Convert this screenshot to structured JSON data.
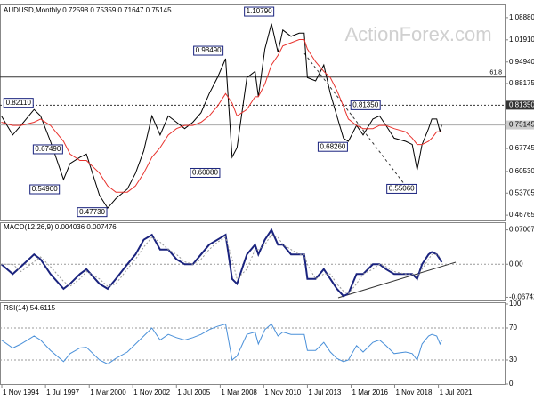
{
  "watermark": "ActionForex.com",
  "chart_data": [
    {
      "type": "line",
      "title": "AUDUSD,Monthly 0.72598 0.75359 0.71647 0.75145",
      "x": [
        1994.8,
        1995.5,
        1996.0,
        1996.8,
        1997.2,
        1997.8,
        1998.6,
        1999.0,
        1999.6,
        2000.0,
        2000.8,
        2001.3,
        2001.8,
        2002.5,
        2003.0,
        2003.5,
        2004.0,
        2004.5,
        2005.0,
        2005.5,
        2006.0,
        2006.5,
        2007.0,
        2007.5,
        2008.0,
        2008.5,
        2008.9,
        2009.2,
        2009.8,
        2010.3,
        2010.5,
        2010.9,
        2011.3,
        2011.7,
        2012.0,
        2012.5,
        2013.0,
        2013.3,
        2013.5,
        2014.0,
        2014.5,
        2014.9,
        2015.3,
        2015.7,
        2016.0,
        2016.5,
        2016.9,
        2017.5,
        2017.9,
        2018.3,
        2018.8,
        2019.5,
        2019.9,
        2020.2,
        2020.5,
        2020.9,
        2021.1,
        2021.4,
        2021.6,
        2021.7
      ],
      "series": [
        {
          "color": "#000000",
          "values": [
            0.78,
            0.72,
            0.75,
            0.8,
            0.78,
            0.7,
            0.58,
            0.63,
            0.65,
            0.66,
            0.53,
            0.49,
            0.52,
            0.55,
            0.6,
            0.67,
            0.78,
            0.72,
            0.78,
            0.76,
            0.74,
            0.76,
            0.79,
            0.85,
            0.9,
            0.96,
            0.65,
            0.68,
            0.9,
            0.92,
            0.84,
            0.99,
            1.07,
            0.98,
            1.05,
            1.03,
            1.04,
            1.04,
            0.9,
            0.89,
            0.94,
            0.85,
            0.78,
            0.71,
            0.7,
            0.75,
            0.72,
            0.77,
            0.78,
            0.75,
            0.71,
            0.7,
            0.69,
            0.61,
            0.69,
            0.74,
            0.77,
            0.77,
            0.73,
            0.7515
          ]
        },
        {
          "color": "#e8322d",
          "values": [
            0.76,
            0.75,
            0.75,
            0.76,
            0.77,
            0.75,
            0.7,
            0.66,
            0.64,
            0.64,
            0.6,
            0.56,
            0.54,
            0.54,
            0.56,
            0.6,
            0.65,
            0.68,
            0.72,
            0.74,
            0.75,
            0.75,
            0.76,
            0.78,
            0.81,
            0.85,
            0.82,
            0.78,
            0.8,
            0.84,
            0.84,
            0.88,
            0.94,
            0.97,
            1.0,
            1.01,
            1.02,
            1.02,
            0.99,
            0.95,
            0.92,
            0.9,
            0.86,
            0.81,
            0.77,
            0.75,
            0.74,
            0.74,
            0.75,
            0.75,
            0.74,
            0.73,
            0.71,
            0.69,
            0.69,
            0.7,
            0.71,
            0.73,
            0.73,
            0.73
          ]
        }
      ],
      "xlim": [
        1994.72,
        2025.6
      ],
      "xticks": [
        {
          "value": 1994.83,
          "label": "1 Nov 1994"
        },
        {
          "value": 1997.5,
          "label": "1 Jul 1997"
        },
        {
          "value": 2000.17,
          "label": "1 Mar 2000"
        },
        {
          "value": 2002.83,
          "label": "1 Nov 2002"
        },
        {
          "value": 2005.5,
          "label": "1 Jul 2005"
        },
        {
          "value": 2008.17,
          "label": "1 Mar 2008"
        },
        {
          "value": 2010.83,
          "label": "1 Nov 2010"
        },
        {
          "value": 2013.5,
          "label": "1 Jul 2013"
        },
        {
          "value": 2016.17,
          "label": "1 Mar 2016"
        },
        {
          "value": 2018.83,
          "label": "1 Nov 2018"
        },
        {
          "value": 2021.5,
          "label": "1 Jul 2021"
        }
      ],
      "ylim": [
        0.454,
        1.122
      ],
      "yticks": [
        {
          "value": 1.0888,
          "label": "1.08880"
        },
        {
          "value": 1.0191,
          "label": "1.01910"
        },
        {
          "value": 0.9494,
          "label": "0.94940"
        },
        {
          "value": 0.88175,
          "label": "0.88175"
        },
        {
          "value": 0.67745,
          "label": "0.67745"
        },
        {
          "value": 0.6053,
          "label": "0.60530"
        },
        {
          "value": 0.53705,
          "label": "0.53705"
        },
        {
          "value": 0.46765,
          "label": "0.46765"
        }
      ],
      "levels": [
        {
          "value": 0.902,
          "label": "61.8",
          "style": "fib"
        },
        {
          "value": 0.8135,
          "label": "0.81350",
          "style": "dashed"
        },
        {
          "value": 0.75145,
          "label": "0.75145",
          "style": "current"
        }
      ],
      "annotations": [
        {
          "label": "1.10790",
          "value": 1.1079,
          "x": 2011.5
        },
        {
          "label": "0.98490",
          "value": 0.9849,
          "x": 2008.4
        },
        {
          "label": "0.82110",
          "value": 0.8211,
          "x": 1996.8
        },
        {
          "label": "0.67490",
          "value": 0.6749,
          "x": 1998.6
        },
        {
          "label": "0.54900",
          "value": 0.549,
          "x": 1998.4
        },
        {
          "label": "0.47730",
          "value": 0.4773,
          "x": 2001.3
        },
        {
          "label": "0.60080",
          "value": 0.6008,
          "x": 2008.2
        },
        {
          "label": "0.68260",
          "value": 0.6826,
          "x": 2016.0
        },
        {
          "label": "0.81350",
          "value": 0.8135,
          "x": 2018.0
        },
        {
          "label": "0.55060",
          "value": 0.5506,
          "x": 2020.2
        }
      ]
    },
    {
      "type": "line",
      "title": "MACD(12,26,9) 0.004036 0.007476",
      "series": [
        {
          "color": "#1a237e",
          "values": [
            0.0,
            -0.02,
            -0.005,
            0.02,
            0.01,
            -0.02,
            -0.05,
            -0.04,
            -0.02,
            -0.01,
            -0.04,
            -0.05,
            -0.03,
            0.0,
            0.02,
            0.05,
            0.06,
            0.03,
            0.03,
            0.01,
            0.0,
            0.0,
            0.02,
            0.04,
            0.05,
            0.06,
            -0.03,
            -0.04,
            0.02,
            0.04,
            0.02,
            0.05,
            0.07,
            0.04,
            0.04,
            0.02,
            0.02,
            0.02,
            -0.03,
            -0.03,
            -0.01,
            -0.03,
            -0.05,
            -0.065,
            -0.06,
            -0.02,
            -0.02,
            0.0,
            0.0,
            -0.01,
            -0.02,
            -0.02,
            -0.02,
            -0.03,
            0.0,
            0.02,
            0.025,
            0.02,
            0.01,
            0.004
          ]
        },
        {
          "color": "#999999",
          "values": [
            0.0,
            0.0,
            -0.015,
            0.005,
            0.015,
            -0.005,
            -0.035,
            -0.045,
            -0.03,
            -0.015,
            -0.03,
            -0.045,
            -0.04,
            -0.01,
            0.01,
            0.035,
            0.055,
            0.045,
            0.03,
            0.02,
            0.005,
            0.0,
            0.01,
            0.03,
            0.045,
            0.055,
            0.01,
            -0.03,
            -0.01,
            0.03,
            0.03,
            0.04,
            0.06,
            0.055,
            0.04,
            0.03,
            0.02,
            0.02,
            0.0,
            -0.03,
            -0.02,
            -0.02,
            -0.04,
            -0.055,
            -0.06,
            -0.04,
            -0.02,
            -0.01,
            0.0,
            -0.005,
            -0.015,
            -0.02,
            -0.02,
            -0.025,
            -0.01,
            0.01,
            0.02,
            0.02,
            0.015,
            0.0075
          ]
        }
      ],
      "ylim": [
        -0.072,
        0.082
      ],
      "yticks": [
        0.070071,
        {
          "value": 0,
          "label": "0.00"
        },
        -0.067423
      ]
    },
    {
      "type": "line",
      "title": "RSI(14) 54.6115",
      "series": [
        {
          "color": "#4a90d9",
          "values": [
            55,
            45,
            50,
            60,
            55,
            42,
            28,
            38,
            45,
            46,
            30,
            25,
            32,
            40,
            50,
            60,
            70,
            55,
            62,
            58,
            55,
            58,
            62,
            68,
            72,
            75,
            30,
            35,
            62,
            65,
            50,
            68,
            75,
            60,
            65,
            62,
            62,
            62,
            42,
            42,
            52,
            40,
            32,
            28,
            30,
            48,
            40,
            52,
            55,
            48,
            38,
            40,
            38,
            30,
            50,
            60,
            62,
            60,
            50,
            54.6
          ]
        }
      ],
      "ylim": [
        0,
        100
      ],
      "yticks": [
        100,
        70,
        30,
        0
      ],
      "dashed_levels": [
        70,
        30
      ]
    }
  ]
}
